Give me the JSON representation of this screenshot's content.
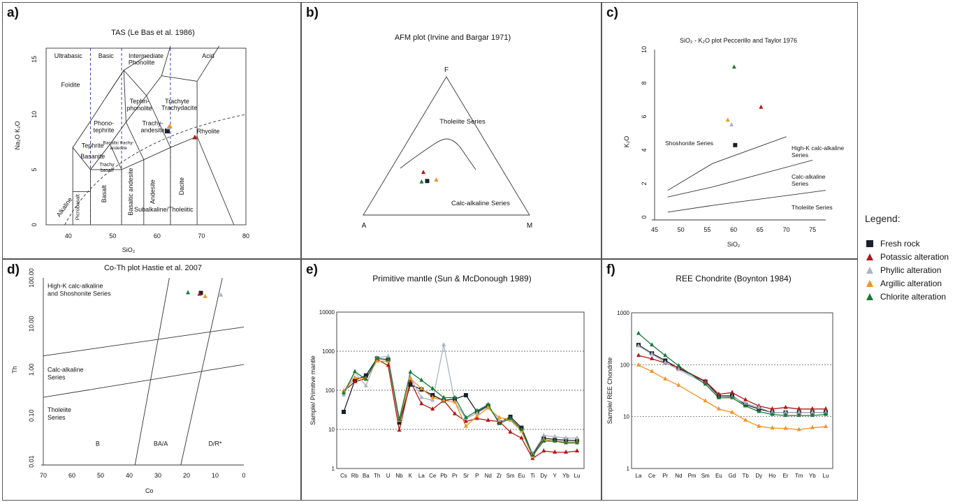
{
  "colors": {
    "fresh": "#1a1f2e",
    "potassic": "#b01818",
    "phyllic": "#a9b4c4",
    "argillic": "#f39321",
    "chlorite": "#187a35",
    "dash": "#2a2ab8"
  },
  "legend": {
    "title": "Legend:",
    "items": [
      {
        "key": "fresh",
        "label": "Fresh rock",
        "marker": "square"
      },
      {
        "key": "potassic",
        "label": "Potassic alteration",
        "marker": "triangle"
      },
      {
        "key": "phyllic",
        "label": "Phyllic alteration",
        "marker": "triangle"
      },
      {
        "key": "argillic",
        "label": "Argillic alteration",
        "marker": "triangle"
      },
      {
        "key": "chlorite",
        "label": "Chlorite alteration",
        "marker": "triangle"
      }
    ]
  },
  "panels": {
    "a": "a)",
    "b": "b)",
    "c": "c)",
    "d": "d)",
    "e": "e)",
    "f": "f)"
  },
  "chart_data": [
    {
      "id": "a",
      "type": "scatter",
      "title": "TAS (Le Bas et al. 1986)",
      "xlabel": "SiO₂",
      "ylabel": "Na₂O K₂O",
      "xlim": [
        35,
        80
      ],
      "ylim": [
        0,
        16
      ],
      "xticks": [
        40,
        50,
        60,
        70,
        80
      ],
      "yticks": [
        0,
        5,
        10,
        15
      ],
      "series_labels": [
        "Ultrabasic",
        "Basic",
        "Intermediate",
        "Acid"
      ],
      "fields": [
        "Foidite",
        "Phonolite",
        "Tephri-phonolite",
        "Trachyte",
        "Trachydacite",
        "Phono-tephrite",
        "Trachy-andesite",
        "Tephrite",
        "Basanite",
        "Basaltic trachy-andesite",
        "Trachy basalt",
        "Rhyolite",
        "Basalt",
        "Basaltic andesite",
        "Andesite",
        "Dacite",
        "Picrobasalt",
        "Alkaline",
        "Subalkaline/Tholeiitic"
      ],
      "points": [
        {
          "key": "fresh",
          "x": 62.3,
          "y": 8.5
        },
        {
          "key": "phyllic",
          "x": 62.6,
          "y": 8.8
        },
        {
          "key": "argillic",
          "x": 62.9,
          "y": 8.9
        },
        {
          "key": "potassic",
          "x": 68.5,
          "y": 7.9
        }
      ]
    },
    {
      "id": "b",
      "type": "scatter",
      "title": "AFM plot  (Irvine and Bargar 1971)",
      "vertices": [
        "F",
        "A",
        "M"
      ],
      "fields": [
        "Tholeiite Series",
        "Calc-alkaline Series"
      ],
      "points": [
        {
          "key": "potassic",
          "A": 0.63,
          "F": 0.4,
          "M": 0.27
        },
        {
          "key": "fresh",
          "A": 0.66,
          "F": 0.33,
          "M": 0.35
        },
        {
          "key": "argillic",
          "A": 0.57,
          "F": 0.33,
          "M": 0.41
        },
        {
          "key": "chlorite",
          "A": 0.71,
          "F": 0.32,
          "M": 0.31
        }
      ]
    },
    {
      "id": "c",
      "type": "scatter",
      "title": "SiO₂ - K₂O plot Peccerillo and Taylor 1976",
      "xlabel": "SiO₂",
      "ylabel": "K₂O",
      "xlim": [
        45,
        77.5
      ],
      "ylim": [
        0,
        10
      ],
      "xticks": [
        45,
        50,
        55,
        60,
        65,
        70,
        75
      ],
      "yticks": [
        0,
        2,
        4,
        6,
        8,
        10
      ],
      "fields": [
        "Shoshonite Series",
        "High-K calc-alkaline Series",
        "Calc-alkaline Series",
        "Tholeiite Series"
      ],
      "points": [
        {
          "key": "chlorite",
          "x": 60.1,
          "y": 8.95
        },
        {
          "key": "potassic",
          "x": 65.2,
          "y": 6.55
        },
        {
          "key": "argillic",
          "x": 58.9,
          "y": 5.78
        },
        {
          "key": "phyllic",
          "x": 59.6,
          "y": 5.5
        },
        {
          "key": "fresh",
          "x": 60.3,
          "y": 4.3
        }
      ]
    },
    {
      "id": "d",
      "type": "scatter",
      "title": "Co-Th plot Hastie et al. 2007",
      "xlabel": "Co",
      "ylabel": "Th",
      "xlim": [
        70,
        0
      ],
      "ylim": [
        0.01,
        100
      ],
      "xticks": [
        70,
        60,
        50,
        40,
        30,
        20,
        10,
        0
      ],
      "yticks": [
        "0.01",
        "0.10",
        "1.00",
        "10.00",
        "100.00"
      ],
      "fields": [
        "High-K calc-alkaline and Shoshonite Series",
        "Calc-alkaline Series",
        "Tholeiite Series",
        "B",
        "BA/A",
        "D/R*"
      ],
      "points": [
        {
          "key": "chlorite",
          "x": 19.5,
          "y": 47
        },
        {
          "key": "fresh",
          "x": 15,
          "y": 47
        },
        {
          "key": "potassic",
          "x": 15.5,
          "y": 44
        },
        {
          "key": "argillic",
          "x": 13.5,
          "y": 39
        },
        {
          "key": "phyllic",
          "x": 8,
          "y": 42
        }
      ]
    },
    {
      "id": "e",
      "type": "line",
      "title": "Primitive mantle (Sun & McDonough 1989)",
      "ylabel": "Sample/ Primitive mantle",
      "ylim": [
        1,
        10000
      ],
      "yticks": [
        "1",
        "10",
        "100",
        "1000",
        "10000"
      ],
      "categories": [
        "Cs",
        "Rb",
        "Ba",
        "Th",
        "U",
        "Nb",
        "K",
        "La",
        "Ce",
        "Pb",
        "Pr",
        "Sr",
        "P",
        "Nd",
        "Zr",
        "Sm",
        "Eu",
        "Ti",
        "Dy",
        "Y",
        "Yb",
        "Lu"
      ],
      "series": [
        {
          "key": "fresh",
          "values": [
            28,
            180,
            240,
            650,
            610,
            15,
            140,
            105,
            75,
            55,
            60,
            75,
            28,
            40,
            15,
            21,
            11,
            2.3,
            6,
            5.5,
            5.3,
            5.2
          ]
        },
        {
          "key": "potassic",
          "values": [
            95,
            165,
            200,
            620,
            430,
            9.5,
            170,
            45,
            33,
            55,
            25,
            16,
            19,
            17,
            16,
            8.5,
            6,
            1.8,
            2.8,
            2.6,
            2.6,
            2.8
          ]
        },
        {
          "key": "phyllic",
          "values": [
            75,
            290,
            130,
            680,
            740,
            17,
            210,
            65,
            55,
            1450,
            50,
            19,
            26,
            37,
            17,
            17,
            9,
            2.4,
            7,
            6.5,
            6,
            6
          ]
        },
        {
          "key": "argillic",
          "values": [
            95,
            210,
            200,
            560,
            550,
            17,
            200,
            110,
            65,
            55,
            50,
            12,
            22,
            35,
            20,
            18,
            9,
            2,
            5.5,
            5,
            4.8,
            4.8
          ]
        },
        {
          "key": "chlorite",
          "values": [
            85,
            300,
            190,
            650,
            600,
            18,
            290,
            180,
            110,
            65,
            65,
            20,
            30,
            43,
            14,
            19,
            10,
            2.2,
            5,
            5,
            4.5,
            4.5
          ]
        }
      ]
    },
    {
      "id": "f",
      "type": "line",
      "title": "REE Chondrite (Boynton 1984)",
      "ylabel": "Sample/ REE Chondrite",
      "ylim": [
        1,
        1000
      ],
      "yticks": [
        "1",
        "10",
        "100",
        "1000"
      ],
      "categories": [
        "La",
        "Ce",
        "Pr",
        "Nd",
        "Pm",
        "Sm",
        "Eu",
        "Gd",
        "Tb",
        "Dy",
        "Ho",
        "Er",
        "Tm",
        "Yb",
        "Lu"
      ],
      "series": [
        {
          "key": "fresh",
          "values": [
            240,
            165,
            120,
            85,
            null,
            47,
            25,
            25,
            17,
            14,
            12,
            12,
            12,
            12,
            12
          ]
        },
        {
          "key": "potassic",
          "values": [
            150,
            130,
            108,
            88,
            null,
            48,
            27,
            29,
            21,
            16,
            14,
            15,
            14,
            14,
            14
          ]
        },
        {
          "key": "phyllic",
          "values": [
            230,
            160,
            110,
            80,
            null,
            43,
            23,
            24,
            18,
            15,
            12,
            12,
            12,
            12,
            12
          ]
        },
        {
          "key": "argillic",
          "values": [
            98,
            74,
            53,
            40,
            null,
            20,
            14,
            12,
            8.5,
            6.5,
            6,
            5.9,
            5.6,
            6.1,
            6.4
          ]
        },
        {
          "key": "chlorite",
          "values": [
            400,
            240,
            150,
            95,
            null,
            42,
            23,
            23,
            16,
            12.5,
            11,
            10.5,
            10.5,
            10.5,
            11
          ]
        }
      ]
    }
  ]
}
